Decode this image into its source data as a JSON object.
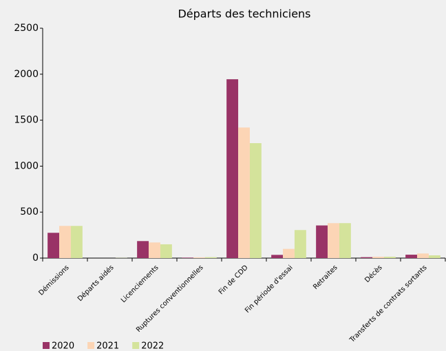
{
  "chart_data": {
    "type": "bar",
    "title": "Départs des techniciens",
    "categories": [
      "Démissions",
      "Départs aidés",
      "Licenciements",
      "Ruptures conventionnelles",
      "Fin de CDD",
      "Fin période d'essai",
      "Retraites",
      "Décès",
      "Transferts de contrats sortants"
    ],
    "series": [
      {
        "name": "2020",
        "color": "#993366",
        "values": [
          275,
          0,
          185,
          5,
          1945,
          35,
          355,
          10,
          37
        ]
      },
      {
        "name": "2021",
        "color": "#fcd5b5",
        "values": [
          350,
          0,
          170,
          8,
          1420,
          100,
          380,
          15,
          50
        ]
      },
      {
        "name": "2022",
        "color": "#d4e39b",
        "values": [
          350,
          2,
          150,
          10,
          1250,
          305,
          380,
          15,
          30
        ]
      }
    ],
    "ylim": [
      0,
      2500
    ],
    "yticks": [
      0,
      500,
      1000,
      1500,
      2000,
      2500
    ],
    "grid": false,
    "legend": "bottom-left"
  }
}
